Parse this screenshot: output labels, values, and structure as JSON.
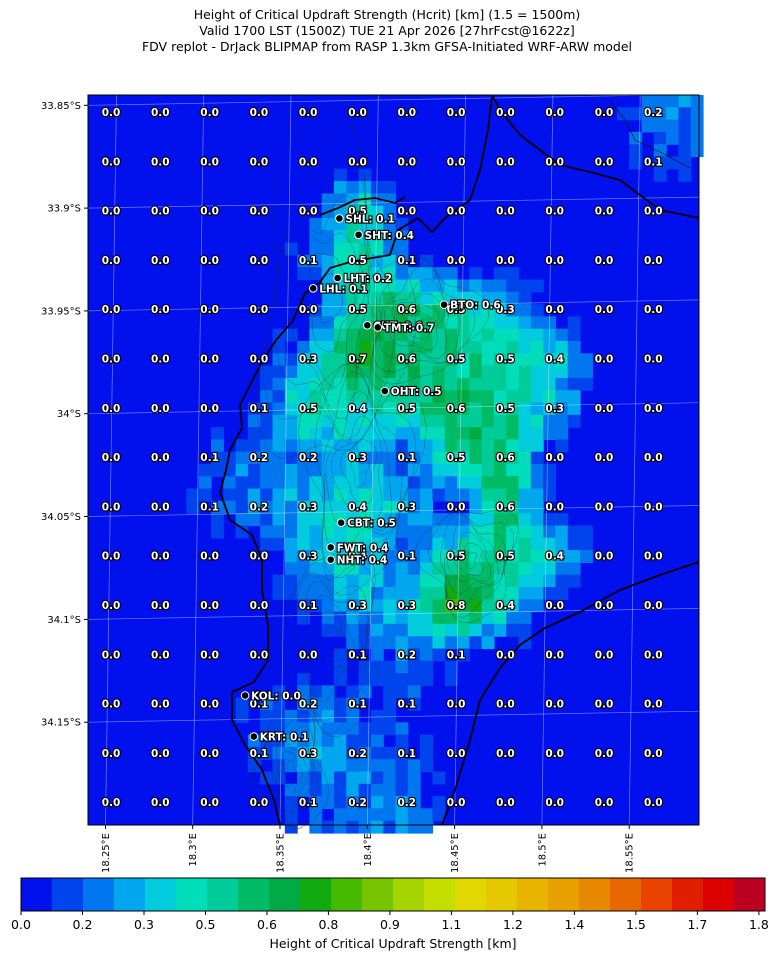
{
  "title": {
    "line1": "Height of Critical Updraft Strength (Hcrit) [km] (1.5 = 1500m)",
    "line2": "Valid 1700 LST (1500Z) TUE 21 Apr 2026 [27hrFcst@1622z]",
    "line3": "FDV replot - DrJack BLIPMAP from RASP 1.3km GFSA-Initiated WRF-ARW model"
  },
  "chart_data": {
    "type": "heatmap",
    "x_ticks": [
      "18.25°E",
      "18.3°E",
      "18.35°E",
      "18.4°E",
      "18.45°E",
      "18.5°E",
      "18.55°E"
    ],
    "y_ticks": [
      "33.85°S",
      "33.9°S",
      "33.95°S",
      "34°S",
      "34.05°S",
      "34.1°S",
      "34.15°S"
    ],
    "x_range": [
      18.24,
      18.59
    ],
    "y_range": [
      -34.2,
      -33.845
    ],
    "grid_values": [
      [
        "0.0",
        "0.0",
        "0.0",
        "0.0",
        "0.0",
        "0.0",
        "0.0",
        "0.0",
        "0.0",
        "0.0",
        "0.0",
        "0.2"
      ],
      [
        "0.0",
        "0.0",
        "0.0",
        "0.0",
        "0.0",
        "0.0",
        "0.0",
        "0.0",
        "0.0",
        "0.0",
        "0.0",
        "0.1"
      ],
      [
        "0.0",
        "0.0",
        "0.0",
        "0.0",
        "0.0",
        "0.5",
        "0.0",
        "0.0",
        "0.0",
        "0.0",
        "0.0",
        "0.0"
      ],
      [
        "0.0",
        "0.0",
        "0.0",
        "0.0",
        "0.1",
        "0.5",
        "0.1",
        "0.0",
        "0.0",
        "0.0",
        "0.0",
        "0.0"
      ],
      [
        "0.0",
        "0.0",
        "0.0",
        "0.0",
        "0.0",
        "0.5",
        "0.6",
        "0.5",
        "0.3",
        "0.0",
        "0.0",
        "0.0"
      ],
      [
        "0.0",
        "0.0",
        "0.0",
        "0.0",
        "0.3",
        "0.7",
        "0.6",
        "0.5",
        "0.5",
        "0.4",
        "0.0",
        "0.0"
      ],
      [
        "0.0",
        "0.0",
        "0.0",
        "0.1",
        "0.5",
        "0.4",
        "0.5",
        "0.6",
        "0.5",
        "0.3",
        "0.0",
        "0.0"
      ],
      [
        "0.0",
        "0.0",
        "0.1",
        "0.2",
        "0.2",
        "0.3",
        "0.1",
        "0.5",
        "0.6",
        "0.0",
        "0.0",
        "0.0"
      ],
      [
        "0.0",
        "0.0",
        "0.1",
        "0.2",
        "0.3",
        "0.4",
        "0.3",
        "0.0",
        "0.6",
        "0.0",
        "0.0",
        "0.0"
      ],
      [
        "0.0",
        "0.0",
        "0.0",
        "0.0",
        "0.3",
        "0.4",
        "0.1",
        "0.5",
        "0.5",
        "0.4",
        "0.0",
        "0.0"
      ],
      [
        "0.0",
        "0.0",
        "0.0",
        "0.0",
        "0.1",
        "0.3",
        "0.3",
        "0.8",
        "0.4",
        "0.0",
        "0.0",
        "0.0"
      ],
      [
        "0.0",
        "0.0",
        "0.0",
        "0.0",
        "0.0",
        "0.1",
        "0.2",
        "0.1",
        "0.0",
        "0.0",
        "0.0",
        "0.0"
      ],
      [
        "0.0",
        "0.0",
        "0.0",
        "0.1",
        "0.2",
        "0.1",
        "0.1",
        "0.0",
        "0.0",
        "0.0",
        "0.0",
        "0.0"
      ],
      [
        "0.0",
        "0.0",
        "0.0",
        "0.1",
        "0.3",
        "0.2",
        "0.1",
        "0.0",
        "0.0",
        "0.0",
        "0.0",
        "0.0"
      ],
      [
        "0.0",
        "0.0",
        "0.0",
        "0.0",
        "0.1",
        "0.2",
        "0.2",
        "0.0",
        "0.0",
        "0.0",
        "0.0",
        "0.0"
      ]
    ],
    "sites": [
      {
        "label": "SHL: 0.1",
        "lon": 18.384,
        "lat": -33.905
      },
      {
        "label": "SHT: 0.4",
        "lon": 18.395,
        "lat": -33.913
      },
      {
        "label": "LHT: 0.2",
        "lon": 18.383,
        "lat": -33.934
      },
      {
        "label": "LHL: 0.1",
        "lon": 18.369,
        "lat": -33.939
      },
      {
        "label": "BTO: 0.6",
        "lon": 18.444,
        "lat": -33.947
      },
      {
        "label": "CUT: 0.6",
        "lon": 18.4,
        "lat": -33.957
      },
      {
        "label": "TMT: 0.7",
        "lon": 18.406,
        "lat": -33.958
      },
      {
        "label": "OHT: 0.5",
        "lon": 18.41,
        "lat": -33.989
      },
      {
        "label": "CBT: 0.5",
        "lon": 18.385,
        "lat": -34.053
      },
      {
        "label": "FWT: 0.4",
        "lon": 18.379,
        "lat": -34.065
      },
      {
        "label": "NHT: 0.4",
        "lon": 18.379,
        "lat": -34.071
      },
      {
        "label": "KOL: 0.0",
        "lon": 18.33,
        "lat": -34.137
      },
      {
        "label": "KRT: 0.1",
        "lon": 18.335,
        "lat": -34.157
      }
    ],
    "colorbar": {
      "label": "Height of Critical Updraft Strength [km]",
      "ticks": [
        "0.0",
        "0.2",
        "0.3",
        "0.5",
        "0.6",
        "0.8",
        "0.9",
        "1.1",
        "1.2",
        "1.4",
        "1.5",
        "1.7",
        "1.8"
      ],
      "colors": [
        "#0011ee",
        "#0044ee",
        "#0077ee",
        "#00a6ee",
        "#00ccdd",
        "#00ddbb",
        "#00cc99",
        "#00bb66",
        "#00aa44",
        "#11aa11",
        "#44bb00",
        "#77c400",
        "#a6d400",
        "#c4de00",
        "#e0d800",
        "#e6c800",
        "#e8b400",
        "#e8a000",
        "#e88800",
        "#e86800",
        "#e84400",
        "#e21e00",
        "#dd0000",
        "#bb0022"
      ]
    }
  }
}
